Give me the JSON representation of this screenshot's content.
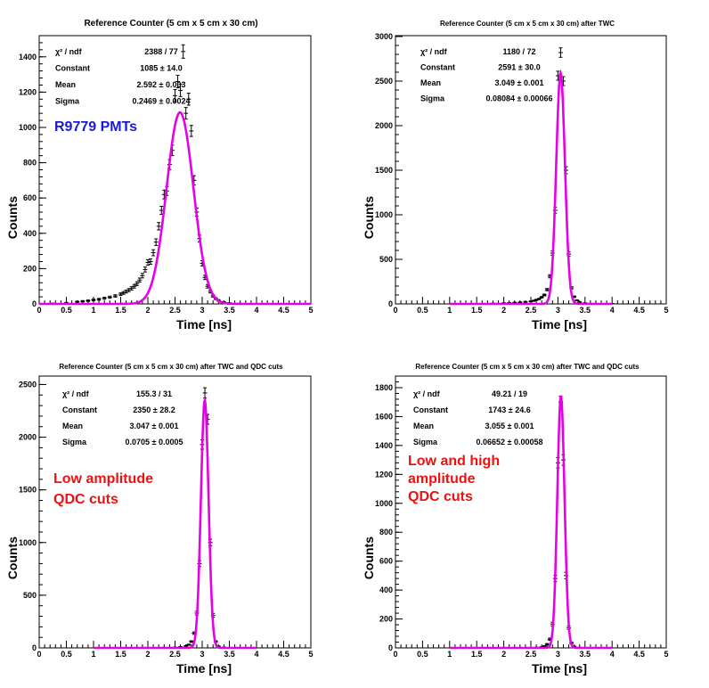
{
  "colors": {
    "fit": "#e600e6",
    "points": "#000000",
    "blue_label": "#1a1ad6",
    "red_label": "#ee1111"
  },
  "chart_data": [
    {
      "type": "scatter",
      "title": "Reference Counter (5 cm x 5 cm x 30 cm)",
      "xlabel": "Time [ns]",
      "ylabel": "Counts",
      "xlim": [
        0,
        5
      ],
      "ylim": [
        0,
        1520
      ],
      "xticks": [
        "0",
        "0.5",
        "1",
        "1.5",
        "2",
        "2.5",
        "3",
        "3.5",
        "4",
        "4.5",
        "5"
      ],
      "yticks": [
        "0",
        "200",
        "400",
        "600",
        "800",
        "1000",
        "1200",
        "1400"
      ],
      "stats": [
        {
          "label": "χ² / ndf",
          "value": "2388 / 77"
        },
        {
          "label": "Constant",
          "value": "1085 ± 14.0"
        },
        {
          "label": "Mean",
          "value": "2.592 ± 0.003"
        },
        {
          "label": "Sigma",
          "value": "0.2469 ± 0.0024"
        }
      ],
      "annotation": {
        "lines": [
          "R9779 PMTs"
        ],
        "color": "blue_label"
      },
      "fit": {
        "constant": 1085,
        "mean": 2.592,
        "sigma": 0.2469
      },
      "points": [
        [
          0.25,
          3
        ],
        [
          0.5,
          6
        ],
        [
          0.7,
          12
        ],
        [
          0.8,
          15
        ],
        [
          0.9,
          18
        ],
        [
          1.0,
          22
        ],
        [
          1.1,
          26
        ],
        [
          1.2,
          32
        ],
        [
          1.3,
          38
        ],
        [
          1.4,
          45
        ],
        [
          1.5,
          55
        ],
        [
          1.55,
          62
        ],
        [
          1.6,
          70
        ],
        [
          1.65,
          78
        ],
        [
          1.7,
          88
        ],
        [
          1.75,
          100
        ],
        [
          1.8,
          115
        ],
        [
          1.85,
          135
        ],
        [
          1.9,
          160
        ],
        [
          1.95,
          195
        ],
        [
          2.0,
          235
        ],
        [
          2.05,
          240
        ],
        [
          2.1,
          290
        ],
        [
          2.15,
          350
        ],
        [
          2.2,
          440
        ],
        [
          2.25,
          530
        ],
        [
          2.3,
          620
        ],
        [
          2.35,
          640
        ],
        [
          2.4,
          790
        ],
        [
          2.45,
          870
        ],
        [
          2.5,
          1180
        ],
        [
          2.55,
          1260
        ],
        [
          2.6,
          1210
        ],
        [
          2.65,
          1430
        ],
        [
          2.7,
          1080
        ],
        [
          2.75,
          1160
        ],
        [
          2.8,
          980
        ],
        [
          2.85,
          700
        ],
        [
          2.9,
          520
        ],
        [
          2.95,
          370
        ],
        [
          3.0,
          230
        ],
        [
          3.05,
          150
        ],
        [
          3.1,
          100
        ],
        [
          3.15,
          70
        ],
        [
          3.2,
          45
        ],
        [
          3.25,
          30
        ],
        [
          3.3,
          20
        ],
        [
          3.4,
          10
        ],
        [
          3.5,
          5
        ],
        [
          3.7,
          2
        ]
      ]
    },
    {
      "type": "scatter",
      "title": "Reference Counter (5 cm x 5 cm x 30 cm) after TWC",
      "xlabel": "Time [ns]",
      "ylabel": "Counts",
      "xlim": [
        0,
        5
      ],
      "ylim": [
        0,
        3010
      ],
      "xticks": [
        "0",
        "0.5",
        "1",
        "1.5",
        "2",
        "2.5",
        "3",
        "3.5",
        "4",
        "4.5",
        "5"
      ],
      "yticks": [
        "0",
        "500",
        "1000",
        "1500",
        "2000",
        "2500",
        "3000"
      ],
      "stats": [
        {
          "label": "χ² / ndf",
          "value": "1180 / 72"
        },
        {
          "label": "Constant",
          "value": "2591 ± 30.0"
        },
        {
          "label": "Mean",
          "value": "3.049 ± 0.001"
        },
        {
          "label": "Sigma",
          "value": "0.08084 ± 0.00066"
        }
      ],
      "annotation": null,
      "fit": {
        "constant": 2591,
        "mean": 3.049,
        "sigma": 0.08084
      },
      "points": [
        [
          1.6,
          3
        ],
        [
          1.8,
          6
        ],
        [
          2.0,
          10
        ],
        [
          2.1,
          12
        ],
        [
          2.2,
          15
        ],
        [
          2.3,
          18
        ],
        [
          2.4,
          22
        ],
        [
          2.5,
          28
        ],
        [
          2.55,
          35
        ],
        [
          2.6,
          45
        ],
        [
          2.65,
          55
        ],
        [
          2.7,
          75
        ],
        [
          2.75,
          100
        ],
        [
          2.8,
          160
        ],
        [
          2.85,
          310
        ],
        [
          2.9,
          570
        ],
        [
          2.95,
          1050
        ],
        [
          3.0,
          2560
        ],
        [
          3.05,
          2820
        ],
        [
          3.1,
          2500
        ],
        [
          3.15,
          1500
        ],
        [
          3.2,
          560
        ],
        [
          3.25,
          180
        ],
        [
          3.3,
          80
        ],
        [
          3.35,
          40
        ],
        [
          3.4,
          20
        ],
        [
          3.5,
          10
        ],
        [
          3.7,
          4
        ],
        [
          4.0,
          2
        ]
      ]
    },
    {
      "type": "scatter",
      "title": "Reference Counter (5 cm x 5 cm x 30 cm) after TWC and QDC cuts",
      "xlabel": "Time [ns]",
      "ylabel": "Counts",
      "xlim": [
        0,
        5
      ],
      "ylim": [
        0,
        2580
      ],
      "xticks": [
        "0",
        "0.5",
        "1",
        "1.5",
        "2",
        "2.5",
        "3",
        "3.5",
        "4",
        "4.5",
        "5"
      ],
      "yticks": [
        "0",
        "500",
        "1000",
        "1500",
        "2000",
        "2500"
      ],
      "stats": [
        {
          "label": "χ² / ndf",
          "value": "155.3 / 31"
        },
        {
          "label": "Constant",
          "value": "2350 ± 28.2"
        },
        {
          "label": "Mean",
          "value": "3.047 ± 0.001"
        },
        {
          "label": "Sigma",
          "value": "0.0705 ± 0.0005"
        }
      ],
      "annotation": {
        "lines": [
          "Low amplitude",
          "QDC cuts"
        ],
        "color": "red_label"
      },
      "fit": {
        "constant": 2350,
        "mean": 3.047,
        "sigma": 0.0705
      },
      "points": [
        [
          2.0,
          2
        ],
        [
          2.3,
          4
        ],
        [
          2.5,
          6
        ],
        [
          2.6,
          10
        ],
        [
          2.7,
          18
        ],
        [
          2.75,
          30
        ],
        [
          2.8,
          60
        ],
        [
          2.85,
          140
        ],
        [
          2.9,
          330
        ],
        [
          2.95,
          800
        ],
        [
          3.0,
          1930
        ],
        [
          3.05,
          2420
        ],
        [
          3.1,
          2170
        ],
        [
          3.15,
          1000
        ],
        [
          3.2,
          310
        ],
        [
          3.25,
          60
        ],
        [
          3.3,
          15
        ],
        [
          3.4,
          5
        ],
        [
          3.6,
          2
        ]
      ]
    },
    {
      "type": "scatter",
      "title": "Reference Counter (5 cm x 5 cm x 30 cm) after TWC and QDC cuts",
      "xlabel": "Time [ns]",
      "ylabel": "Counts",
      "xlim": [
        0,
        5
      ],
      "ylim": [
        0,
        1880
      ],
      "xticks": [
        "0",
        "0.5",
        "1",
        "1.5",
        "2",
        "2.5",
        "3",
        "3.5",
        "4",
        "4.5",
        "5"
      ],
      "yticks": [
        "0",
        "200",
        "400",
        "600",
        "800",
        "1000",
        "1200",
        "1400",
        "1600",
        "1800"
      ],
      "stats": [
        {
          "label": "χ² / ndf",
          "value": "49.21 / 19"
        },
        {
          "label": "Constant",
          "value": "1743 ± 24.6"
        },
        {
          "label": "Mean",
          "value": "3.055 ± 0.001"
        },
        {
          "label": "Sigma",
          "value": "0.06652 ± 0.00058"
        }
      ],
      "annotation": {
        "lines": [
          "Low and high",
          "amplitude",
          "QDC cuts"
        ],
        "color": "red_label"
      },
      "fit": {
        "constant": 1743,
        "mean": 3.055,
        "sigma": 0.06652
      },
      "points": [
        [
          2.6,
          3
        ],
        [
          2.7,
          6
        ],
        [
          2.75,
          12
        ],
        [
          2.8,
          25
        ],
        [
          2.85,
          60
        ],
        [
          2.9,
          165
        ],
        [
          2.95,
          480
        ],
        [
          3.0,
          1280
        ],
        [
          3.05,
          1700
        ],
        [
          3.1,
          1300
        ],
        [
          3.15,
          500
        ],
        [
          3.2,
          140
        ],
        [
          3.25,
          35
        ],
        [
          3.3,
          10
        ],
        [
          3.4,
          3
        ]
      ]
    }
  ]
}
